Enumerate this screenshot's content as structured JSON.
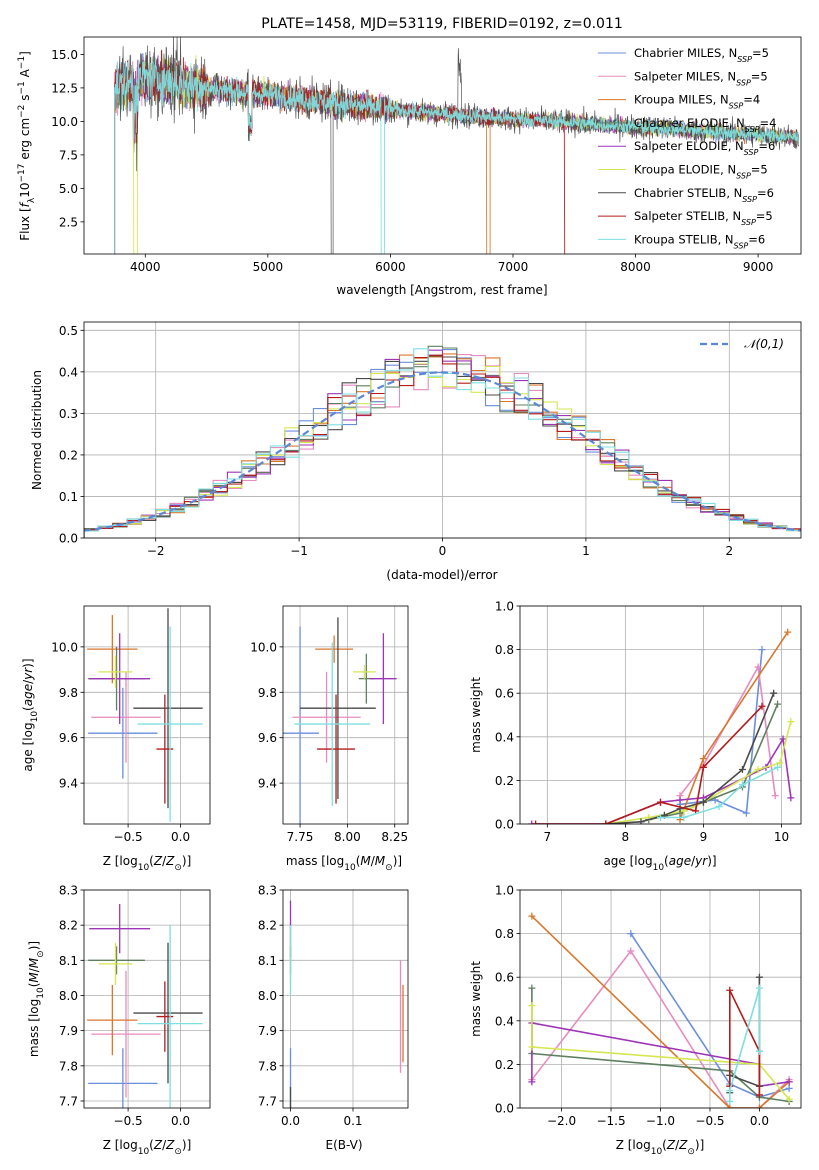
{
  "colors": {
    "Chabrier MILES": "#6b8fdc",
    "Salpeter MILES": "#e88bbf",
    "Kroupa MILES": "#d9772b",
    "Chabrier ELODIE": "#5f8060",
    "Salpeter ELODIE": "#9e35b8",
    "Kroupa ELODIE": "#d6e653",
    "Chabrier STELIB": "#4a4a4a",
    "Salpeter STELIB": "#b51b1b",
    "Kroupa STELIB": "#7edfe0"
  },
  "chart_data": [
    {
      "id": "spectrum",
      "type": "line",
      "title": "PLATE=1458, MJD=53119, FIBERID=0192, z=0.011",
      "xlabel": "wavelength [Angstrom, rest frame]",
      "ylabel": "Flux [f_λ10^-17 erg cm^-2 s^-1 A^-1]",
      "xlim": [
        3500,
        9350
      ],
      "ylim": [
        0.1,
        16.3
      ],
      "xticks": [
        4000,
        5000,
        6000,
        7000,
        8000,
        9000
      ],
      "yticks": [
        2.5,
        5.0,
        7.5,
        10.0,
        12.5,
        15.0
      ],
      "legend_position": "top-right",
      "legend": [
        {
          "label": "Chabrier MILES, N",
          "sub": "SSP",
          "suffix": "=5"
        },
        {
          "label": "Salpeter MILES, N",
          "sub": "SSP",
          "suffix": "=5"
        },
        {
          "label": "Kroupa MILES, N",
          "sub": "SSP",
          "suffix": "=4"
        },
        {
          "label": "Chabrier ELODIE, N",
          "sub": "SSP",
          "suffix": "=4"
        },
        {
          "label": "Salpeter ELODIE, N",
          "sub": "SSP",
          "suffix": "=6"
        },
        {
          "label": "Kroupa ELODIE, N",
          "sub": "SSP",
          "suffix": "=5"
        },
        {
          "label": "Chabrier STELIB, N",
          "sub": "SSP",
          "suffix": "=6"
        },
        {
          "label": "Salpeter STELIB, N",
          "sub": "SSP",
          "suffix": "=5"
        },
        {
          "label": "Kroupa STELIB, N",
          "sub": "SSP",
          "suffix": "=6"
        }
      ],
      "series_order": [
        "Chabrier MILES",
        "Salpeter MILES",
        "Kroupa MILES",
        "Chabrier ELODIE",
        "Salpeter ELODIE",
        "Kroupa ELODIE",
        "Chabrier STELIB",
        "Salpeter STELIB",
        "Kroupa STELIB"
      ],
      "continuum": {
        "x": [
          3750,
          4000,
          4500,
          5000,
          5500,
          6000,
          6500,
          7000,
          7500,
          8000,
          8500,
          9000,
          9300
        ],
        "y": [
          12.4,
          13.3,
          12.5,
          12.0,
          11.4,
          10.9,
          10.5,
          10.2,
          9.9,
          9.6,
          9.3,
          9.0,
          8.8
        ]
      },
      "gaps": [
        {
          "series": "Kroupa ELODIE",
          "x0": 3905,
          "x1": 3935
        },
        {
          "series": "Chabrier STELIB",
          "x0": 5515,
          "x1": 5530
        },
        {
          "series": "Kroupa STELIB",
          "x0": 5925,
          "x1": 5950
        },
        {
          "series": "Kroupa MILES",
          "x0": 6785,
          "x1": 6810
        },
        {
          "series": "Salpeter STELIB",
          "x0": 7420,
          "x1": 9350
        }
      ]
    },
    {
      "id": "residuals",
      "type": "area",
      "xlabel": "(data-model)/error",
      "ylabel": "Normed distribution",
      "xlim": [
        -2.5,
        2.5
      ],
      "ylim": [
        0,
        0.52
      ],
      "xticks": [
        -2,
        -1,
        0,
        1,
        2
      ],
      "yticks": [
        0.0,
        0.1,
        0.2,
        0.3,
        0.4,
        0.5
      ],
      "legend": "𝒩(0,1)",
      "legend_position": "top-right",
      "bin_width": 0.1,
      "bin_start": -2.5,
      "series_order": [
        "Chabrier MILES",
        "Salpeter MILES",
        "Kroupa MILES",
        "Chabrier ELODIE",
        "Salpeter ELODIE",
        "Kroupa ELODIE",
        "Chabrier STELIB",
        "Salpeter STELIB",
        "Kroupa STELIB"
      ]
    },
    {
      "id": "z-age",
      "type": "scatter",
      "xlabel": "Z [log10(Z/Z⊙)]",
      "ylabel": "age  [log10(age/yr)]",
      "xlim": [
        -0.92,
        0.28
      ],
      "ylim": [
        9.22,
        10.18
      ],
      "xticks": [
        -0.5,
        0.0
      ],
      "yticks": [
        9.4,
        9.6,
        9.8,
        10.0
      ],
      "points": [
        {
          "series": "Chabrier MILES",
          "x": -0.55,
          "xerr": 0.33,
          "y": 9.62,
          "yerr": 0.2
        },
        {
          "series": "Salpeter MILES",
          "x": -0.52,
          "xerr": 0.33,
          "y": 9.69,
          "yerr": 0.2
        },
        {
          "series": "Kroupa MILES",
          "x": -0.65,
          "xerr": 0.24,
          "y": 9.99,
          "yerr": 0.15
        },
        {
          "series": "Chabrier ELODIE",
          "x": -0.61,
          "xerr": 0.27,
          "y": 9.86,
          "yerr": 0.14
        },
        {
          "series": "Salpeter ELODIE",
          "x": -0.58,
          "xerr": 0.29,
          "y": 9.86,
          "yerr": 0.2
        },
        {
          "series": "Kroupa ELODIE",
          "x": -0.62,
          "xerr": 0.16,
          "y": 9.89,
          "yerr": 0.07
        },
        {
          "series": "Chabrier STELIB",
          "x": -0.12,
          "xerr": 0.33,
          "y": 9.73,
          "yerr": 0.44
        },
        {
          "series": "Salpeter STELIB",
          "x": -0.15,
          "xerr": 0.08,
          "y": 9.55,
          "yerr": 0.24
        },
        {
          "series": "Kroupa STELIB",
          "x": -0.1,
          "xerr": 0.31,
          "y": 9.66,
          "yerr": 0.43
        }
      ]
    },
    {
      "id": "mass-age",
      "type": "scatter",
      "xlabel": "mass [log10(M/M⊙)]",
      "ylabel": "",
      "xlim": [
        7.66,
        8.32
      ],
      "ylim": [
        9.22,
        10.18
      ],
      "xticks": [
        7.75,
        8.0,
        8.25
      ],
      "yticks": [
        9.4,
        9.6,
        9.8,
        10.0
      ],
      "points": [
        {
          "series": "Chabrier MILES",
          "x": 7.75,
          "xerr": 0.1,
          "y": 9.62,
          "yerr": 0.47
        },
        {
          "series": "Salpeter MILES",
          "x": 7.89,
          "xerr": 0.18,
          "y": 9.69,
          "yerr": 0.2
        },
        {
          "series": "Kroupa MILES",
          "x": 7.93,
          "xerr": 0.1,
          "y": 9.99,
          "yerr": 0.06
        },
        {
          "series": "Chabrier ELODIE",
          "x": 8.1,
          "xerr": 0.04,
          "y": 9.86,
          "yerr": 0.11
        },
        {
          "series": "Salpeter ELODIE",
          "x": 8.19,
          "xerr": 0.07,
          "y": 9.86,
          "yerr": 0.2
        },
        {
          "series": "Kroupa ELODIE",
          "x": 8.09,
          "xerr": 0.06,
          "y": 9.89,
          "yerr": 0.03
        },
        {
          "series": "Chabrier STELIB",
          "x": 7.95,
          "xerr": 0.2,
          "y": 9.73,
          "yerr": 0.4
        },
        {
          "series": "Salpeter STELIB",
          "x": 7.94,
          "xerr": 0.1,
          "y": 9.55,
          "yerr": 0.24
        },
        {
          "series": "Kroupa STELIB",
          "x": 7.92,
          "xerr": 0.2,
          "y": 9.66,
          "yerr": 0.36
        }
      ]
    },
    {
      "id": "age-massweight",
      "type": "line",
      "xlabel": "age  [log10(age/yr)]",
      "ylabel": "mass weight",
      "xlim": [
        6.65,
        10.25
      ],
      "ylim": [
        0,
        1
      ],
      "xticks": [
        7,
        8,
        9,
        10
      ],
      "yticks": [
        0.0,
        0.2,
        0.4,
        0.6,
        0.8,
        1.0
      ],
      "series": [
        {
          "name": "Chabrier MILES",
          "x": [
            8.7,
            9.15,
            9.55,
            9.75
          ],
          "y": [
            0.09,
            0.11,
            0.05,
            0.8
          ]
        },
        {
          "name": "Salpeter MILES",
          "x": [
            8.7,
            9.0,
            9.7,
            9.92
          ],
          "y": [
            0.13,
            0.27,
            0.72,
            0.13
          ]
        },
        {
          "name": "Kroupa MILES",
          "x": [
            8.7,
            9.0,
            10.08
          ],
          "y": [
            0.02,
            0.3,
            0.88
          ]
        },
        {
          "name": "Chabrier ELODIE",
          "x": [
            8.3,
            8.7,
            9.0,
            9.5,
            9.95
          ],
          "y": [
            0.02,
            0.05,
            0.1,
            0.17,
            0.55
          ]
        },
        {
          "name": "Salpeter ELODIE",
          "x": [
            6.8,
            7.75,
            8.45,
            8.7,
            9.0,
            9.8,
            10.02,
            10.12
          ],
          "y": [
            0.0,
            0.0,
            0.1,
            0.11,
            0.12,
            0.26,
            0.39,
            0.12
          ]
        },
        {
          "name": "Kroupa ELODIE",
          "x": [
            7.75,
            8.3,
            8.75,
            9.0,
            9.7,
            9.98,
            10.12
          ],
          "y": [
            0.0,
            0.03,
            0.06,
            0.1,
            0.25,
            0.28,
            0.47
          ]
        },
        {
          "name": "Chabrier STELIB",
          "x": [
            7.75,
            8.2,
            8.5,
            8.7,
            9.0,
            9.5,
            9.9
          ],
          "y": [
            0.0,
            0.01,
            0.04,
            0.07,
            0.1,
            0.25,
            0.6
          ]
        },
        {
          "name": "Salpeter STELIB",
          "x": [
            6.85,
            7.75,
            8.45,
            8.9,
            9.0,
            9.75
          ],
          "y": [
            0.0,
            0.0,
            0.1,
            0.06,
            0.26,
            0.54
          ]
        },
        {
          "name": "Kroupa STELIB",
          "x": [
            8.45,
            8.75,
            9.2,
            9.5,
            9.95
          ],
          "y": [
            0.03,
            0.03,
            0.08,
            0.18,
            0.26
          ]
        }
      ]
    },
    {
      "id": "z-mass",
      "type": "scatter",
      "xlabel": "Z [log10(Z/Z⊙)]",
      "ylabel": "mass [log10(M/M⊙)]",
      "xlim": [
        -0.92,
        0.28
      ],
      "ylim": [
        7.68,
        8.3
      ],
      "xticks": [
        -0.5,
        0.0
      ],
      "yticks": [
        7.7,
        7.8,
        7.9,
        8.0,
        8.1,
        8.2,
        8.3
      ],
      "points": [
        {
          "series": "Chabrier MILES",
          "x": -0.55,
          "xerr": 0.33,
          "y": 7.75,
          "yerr": 0.1
        },
        {
          "series": "Salpeter MILES",
          "x": -0.52,
          "xerr": 0.33,
          "y": 7.89,
          "yerr": 0.18
        },
        {
          "series": "Kroupa MILES",
          "x": -0.65,
          "xerr": 0.24,
          "y": 7.93,
          "yerr": 0.1
        },
        {
          "series": "Chabrier ELODIE",
          "x": -0.61,
          "xerr": 0.27,
          "y": 8.1,
          "yerr": 0.04
        },
        {
          "series": "Salpeter ELODIE",
          "x": -0.58,
          "xerr": 0.29,
          "y": 8.19,
          "yerr": 0.07
        },
        {
          "series": "Kroupa ELODIE",
          "x": -0.62,
          "xerr": 0.16,
          "y": 8.09,
          "yerr": 0.06
        },
        {
          "series": "Chabrier STELIB",
          "x": -0.12,
          "xerr": 0.33,
          "y": 7.95,
          "yerr": 0.2
        },
        {
          "series": "Salpeter STELIB",
          "x": -0.15,
          "xerr": 0.08,
          "y": 7.94,
          "yerr": 0.1
        },
        {
          "series": "Kroupa STELIB",
          "x": -0.1,
          "xerr": 0.31,
          "y": 7.92,
          "yerr": 0.28
        }
      ]
    },
    {
      "id": "ebv-mass",
      "type": "scatter",
      "xlabel": "E(B-V)",
      "ylabel": "",
      "xlim": [
        -0.012,
        0.188
      ],
      "ylim": [
        7.68,
        8.3
      ],
      "xticks": [
        0.0,
        0.1
      ],
      "yticks": [
        7.7,
        7.8,
        7.9,
        8.0,
        8.1,
        8.2,
        8.3
      ],
      "points": [
        {
          "series": "Chabrier MILES",
          "x": 0.0,
          "xerr": 0.0,
          "y": 7.75,
          "yerr": 0.1
        },
        {
          "series": "Salpeter MILES",
          "x": 0.176,
          "xerr": 0.0,
          "y": 7.94,
          "yerr": 0.16
        },
        {
          "series": "Kroupa MILES",
          "x": 0.18,
          "xerr": 0.0,
          "y": 7.92,
          "yerr": 0.11
        },
        {
          "series": "Chabrier ELODIE",
          "x": 0.0,
          "xerr": 0.0,
          "y": 8.1,
          "yerr": 0.04
        },
        {
          "series": "Salpeter ELODIE",
          "x": 0.0,
          "xerr": 0.0,
          "y": 8.19,
          "yerr": 0.08
        },
        {
          "series": "Kroupa ELODIE",
          "x": 0.0,
          "xerr": 0.0,
          "y": 8.09,
          "yerr": 0.06
        },
        {
          "series": "Chabrier STELIB",
          "x": 0.0,
          "xerr": 0.0,
          "y": 7.7,
          "yerr": 0.04
        },
        {
          "series": "Salpeter STELIB",
          "x": 0.0,
          "xerr": 0.0,
          "y": 7.94,
          "yerr": 0.0
        },
        {
          "series": "Kroupa STELIB",
          "x": 0.0,
          "xerr": 0.0,
          "y": 8.1,
          "yerr": 0.1
        }
      ]
    },
    {
      "id": "z-massweight",
      "type": "line",
      "xlabel": "Z [log10(Z/Z⊙)]",
      "ylabel": "mass weight",
      "xlim": [
        -2.42,
        0.42
      ],
      "ylim": [
        0,
        1
      ],
      "xticks": [
        -2.0,
        -1.5,
        -1.0,
        -0.5,
        0.0
      ],
      "yticks": [
        0.0,
        0.2,
        0.4,
        0.6,
        0.8,
        1.0
      ],
      "series": [
        {
          "name": "Chabrier MILES",
          "x": [
            -1.3,
            -0.3,
            0.0,
            0.3
          ],
          "y": [
            0.8,
            0.11,
            0.05,
            0.09
          ]
        },
        {
          "name": "Salpeter MILES",
          "x": [
            -2.3,
            -1.3,
            -0.3,
            0.0,
            0.3
          ],
          "y": [
            0.13,
            0.72,
            0.0,
            0.0,
            0.13
          ]
        },
        {
          "name": "Kroupa MILES",
          "x": [
            -2.3,
            -0.3,
            0.0,
            0.3
          ],
          "y": [
            0.88,
            0.0,
            0.0,
            0.12
          ]
        },
        {
          "name": "Chabrier ELODIE",
          "x": [
            -2.3,
            -2.3,
            -0.3,
            0.0,
            0.3
          ],
          "y": [
            0.55,
            0.25,
            0.17,
            0.05,
            0.03
          ]
        },
        {
          "name": "Salpeter ELODIE",
          "x": [
            -2.3,
            -2.3,
            0.0,
            0.0,
            0.3
          ],
          "y": [
            0.12,
            0.39,
            0.2,
            0.1,
            0.12
          ]
        },
        {
          "name": "Kroupa ELODIE",
          "x": [
            -2.3,
            -2.3,
            0.0,
            0.3
          ],
          "y": [
            0.47,
            0.28,
            0.2,
            0.04
          ]
        },
        {
          "name": "Chabrier STELIB",
          "x": [
            -0.3,
            -0.3,
            0.0,
            0.0
          ],
          "y": [
            0.07,
            0.15,
            0.1,
            0.6
          ]
        },
        {
          "name": "Salpeter STELIB",
          "x": [
            -0.3,
            -0.3,
            0.0,
            0.0
          ],
          "y": [
            0.1,
            0.54,
            0.26,
            0.06
          ]
        },
        {
          "name": "Kroupa STELIB",
          "x": [
            -0.3,
            -0.3,
            0.0,
            0.0
          ],
          "y": [
            0.03,
            0.08,
            0.55,
            0.26
          ]
        }
      ]
    }
  ]
}
